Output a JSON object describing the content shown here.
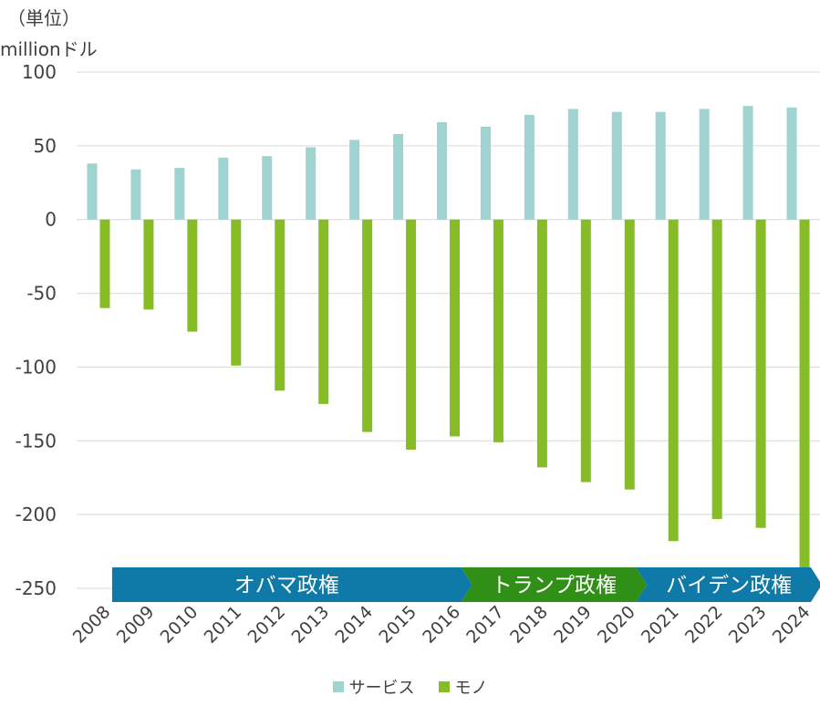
{
  "unit": {
    "line1": "（単位）",
    "line2": "millionドル"
  },
  "colors": {
    "services": "#9fd3d0",
    "goods": "#86bd27",
    "obama": "#0f7aa8",
    "trump": "#2f8f16",
    "biden": "#0f7aa8",
    "grid": "#d9d9d9",
    "text": "#404040"
  },
  "legend": {
    "services": "サービス",
    "goods": "モノ"
  },
  "chart_data": {
    "type": "bar",
    "title": "",
    "xlabel": "",
    "ylabel": "millionドル",
    "ylim": [
      -250,
      100
    ],
    "yticks": [
      100,
      50,
      0,
      -50,
      -100,
      -150,
      -200,
      -250
    ],
    "ytick_labels": [
      "100",
      "50",
      "0",
      "-50",
      "-100",
      "-150",
      "-200",
      "-250"
    ],
    "categories": [
      "2008",
      "2009",
      "2010",
      "2011",
      "2012",
      "2013",
      "2014",
      "2015",
      "2016",
      "2017",
      "2018",
      "2019",
      "2020",
      "2021",
      "2022",
      "2023",
      "2024"
    ],
    "series": [
      {
        "name": "サービス",
        "values": [
          38,
          34,
          35,
          42,
          43,
          49,
          54,
          58,
          66,
          63,
          71,
          75,
          73,
          73,
          75,
          77,
          76
        ]
      },
      {
        "name": "モノ",
        "values": [
          -60,
          -61,
          -76,
          -99,
          -116,
          -125,
          -144,
          -156,
          -147,
          -151,
          -168,
          -178,
          -183,
          -218,
          -203,
          -209,
          -236
        ]
      }
    ],
    "annotations": [
      {
        "label": "オバマ政権",
        "start": "2009",
        "end": "2016"
      },
      {
        "label": "トランプ政権",
        "start": "2017",
        "end": "2020"
      },
      {
        "label": "バイデン政権",
        "start": "2021",
        "end": "2024"
      }
    ]
  }
}
